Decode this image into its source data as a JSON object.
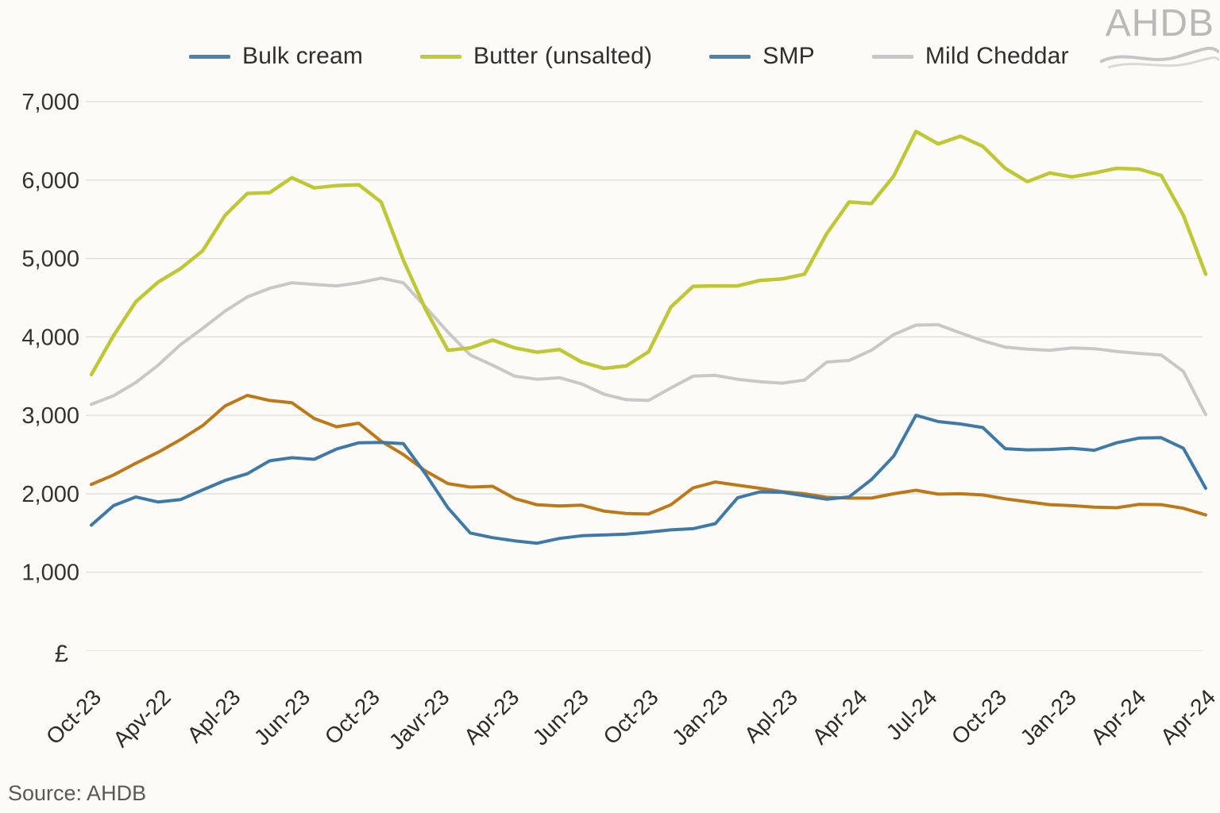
{
  "header": {
    "logo_text": "AHDB"
  },
  "legend": {
    "items": [
      {
        "label": "Bulk cream",
        "color": "#4d82ad"
      },
      {
        "label": "Butter (unsalted)",
        "color": "#c3ca33"
      },
      {
        "label": "SMP",
        "color": "#4d82ad"
      },
      {
        "label": "Mild Cheddar",
        "color": "#c7c7c7"
      }
    ]
  },
  "footer": {
    "source": "Source: AHDB"
  },
  "chart_data": {
    "type": "line",
    "title": "",
    "unit_label": "£",
    "ylim": [
      0,
      7000
    ],
    "grid": true,
    "legend_position": "top",
    "y_ticks": [
      {
        "label": "7,000",
        "value": 7000
      },
      {
        "label": "6,000",
        "value": 6000
      },
      {
        "label": "5,000",
        "value": 5000
      },
      {
        "label": "4,000",
        "value": 4000
      },
      {
        "label": "3,000",
        "value": 3000
      },
      {
        "label": "2,000",
        "value": 2000
      },
      {
        "label": "1,000",
        "value": 1000
      }
    ],
    "x_tick_labels": [
      "Oct-23",
      "Apv-22",
      "Apl-23",
      "Jun-23",
      "Oct-23",
      "Javr-23",
      "Apr-23",
      "Jun-23",
      "Oct-23",
      "Jan-23",
      "Apl-23",
      "Apr-24",
      "Jul-24",
      "Oct-23",
      "Jan-23",
      "Apr-24",
      "Apr-24"
    ],
    "series": [
      {
        "name": "Bulk cream",
        "color": "#3e79a8",
        "values": [
          1600,
          1850,
          1960,
          1895,
          1925,
          2050,
          2170,
          2255,
          2420,
          2460,
          2440,
          2570,
          2650,
          2655,
          2640,
          2250,
          1820,
          1500,
          1440,
          1400,
          1370,
          1430,
          1465,
          1475,
          1485,
          1510,
          1540,
          1555,
          1620,
          1950,
          2025,
          2020,
          1975,
          1930,
          1960,
          2180,
          2480,
          3000,
          2920,
          2890,
          2845,
          2575,
          2560,
          2565,
          2580,
          2555,
          2650,
          2710,
          2715,
          2580,
          2070
        ]
      },
      {
        "name": "Butter (unsalted)",
        "color": "#bfc733",
        "values": [
          3520,
          4020,
          4450,
          4700,
          4870,
          5100,
          5550,
          5830,
          5840,
          6030,
          5900,
          5930,
          5940,
          5720,
          4980,
          4350,
          3830,
          3860,
          3960,
          3860,
          3805,
          3840,
          3680,
          3600,
          3630,
          3810,
          4380,
          4645,
          4650,
          4650,
          4720,
          4740,
          4800,
          5320,
          5720,
          5700,
          6050,
          6620,
          6460,
          6560,
          6430,
          6150,
          5980,
          6090,
          6040,
          6090,
          6150,
          6140,
          6060,
          5550,
          4800
        ]
      },
      {
        "name": "SMP",
        "color": "#bf7817",
        "values": [
          2120,
          2240,
          2390,
          2530,
          2690,
          2870,
          3120,
          3255,
          3190,
          3160,
          2960,
          2855,
          2900,
          2670,
          2500,
          2290,
          2130,
          2085,
          2095,
          1940,
          1860,
          1845,
          1855,
          1780,
          1748,
          1742,
          1860,
          2075,
          2150,
          2110,
          2070,
          2028,
          2000,
          1955,
          1945,
          1945,
          2000,
          2045,
          1995,
          2000,
          1985,
          1935,
          1898,
          1862,
          1848,
          1830,
          1822,
          1865,
          1862,
          1815,
          1730
        ]
      },
      {
        "name": "Mild Cheddar",
        "color": "#c8c8c8",
        "values": [
          3140,
          3250,
          3420,
          3640,
          3900,
          4110,
          4330,
          4510,
          4620,
          4690,
          4670,
          4650,
          4690,
          4750,
          4690,
          4380,
          4060,
          3770,
          3640,
          3500,
          3460,
          3480,
          3400,
          3270,
          3200,
          3190,
          3350,
          3500,
          3510,
          3460,
          3430,
          3410,
          3450,
          3680,
          3700,
          3830,
          4030,
          4150,
          4155,
          4050,
          3950,
          3870,
          3845,
          3830,
          3860,
          3850,
          3815,
          3790,
          3770,
          3560,
          3010
        ]
      }
    ]
  }
}
